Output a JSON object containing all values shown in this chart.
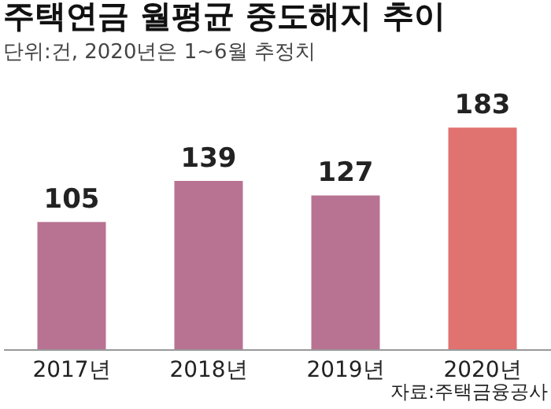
{
  "chart_data": {
    "type": "bar",
    "title": "주택연금 월평균 중도해지 추이",
    "subtitle": "단위:건, 2020년은 1~6월 추정치",
    "categories": [
      "2017년",
      "2018년",
      "2019년",
      "2020년"
    ],
    "values": [
      105,
      139,
      127,
      183
    ],
    "colors": [
      "#b87392",
      "#b87392",
      "#b87392",
      "#e07270"
    ],
    "data_labels": true,
    "annotations": [
      "자료:주택금융공사"
    ]
  }
}
